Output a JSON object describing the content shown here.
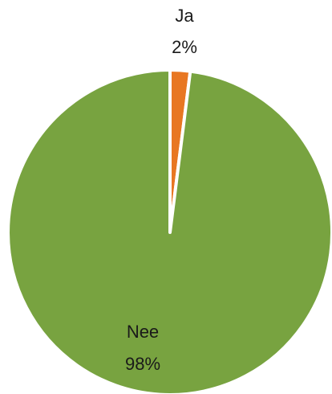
{
  "chart_data": {
    "type": "pie",
    "title": "",
    "slices": [
      {
        "label": "Ja",
        "value": 2,
        "percent_label": "2%",
        "color": "#e87722"
      },
      {
        "label": "Nee",
        "value": 98,
        "percent_label": "98%",
        "color": "#78a340"
      }
    ],
    "start_angle_deg": 0,
    "direction": "clockwise",
    "slice_border_color": "#ffffff",
    "legend": "none"
  }
}
